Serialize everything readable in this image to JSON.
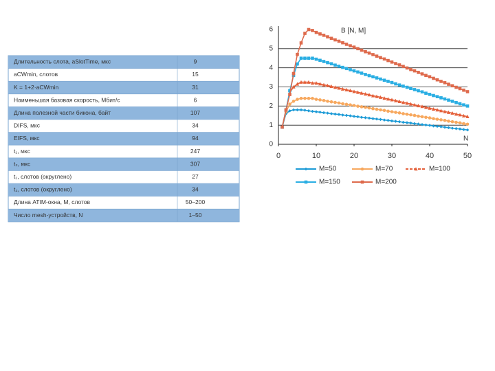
{
  "table": {
    "rows": [
      [
        "Длительность слота, aSlotTime, мкс",
        "9"
      ],
      [
        "aCWmin, слотов",
        "15"
      ],
      [
        "K = 1+2·aCWmin",
        "31"
      ],
      [
        "Наименьшая базовая скорость, Мбит/с",
        "6"
      ],
      [
        "Длина полезной части бикона, байт",
        "107"
      ],
      [
        "DIFS, мкс",
        "34"
      ],
      [
        "EIFS, мкс",
        "94"
      ],
      [
        "t₁, мкс",
        "247"
      ],
      [
        "t₂, мкс",
        "307"
      ],
      [
        "t₁, слотов (округлено)",
        "27"
      ],
      [
        "t₂, слотов (округлено)",
        "34"
      ],
      [
        "Длина ATIM-окна, M, слотов",
        "50–200"
      ],
      [
        "Число mesh-устройств, N",
        "1–50"
      ]
    ]
  },
  "chart_data": {
    "type": "line",
    "y_label": "B [N, M]",
    "x_label": "N",
    "x": [
      1,
      2,
      3,
      4,
      5,
      6,
      7,
      8,
      9,
      10,
      11,
      12,
      13,
      14,
      15,
      16,
      17,
      18,
      19,
      20,
      21,
      22,
      23,
      24,
      25,
      26,
      27,
      28,
      29,
      30,
      31,
      32,
      33,
      34,
      35,
      36,
      37,
      38,
      39,
      40,
      41,
      42,
      43,
      44,
      45,
      46,
      47,
      48,
      49,
      50
    ],
    "xlim": [
      0,
      50
    ],
    "xticks": [
      0,
      10,
      20,
      30,
      40,
      50
    ],
    "ylim": [
      0,
      6
    ],
    "yticks": [
      0,
      1,
      2,
      3,
      4,
      5,
      6
    ],
    "grid": true,
    "series": [
      {
        "name": "M=50",
        "color": "#1b9ad6",
        "marker": "diamond",
        "values": [
          0.9,
          1.6,
          1.75,
          1.8,
          1.8,
          1.8,
          1.78,
          1.75,
          1.72,
          1.7,
          1.68,
          1.65,
          1.63,
          1.6,
          1.58,
          1.56,
          1.53,
          1.51,
          1.49,
          1.46,
          1.44,
          1.41,
          1.39,
          1.37,
          1.34,
          1.32,
          1.3,
          1.27,
          1.25,
          1.22,
          1.2,
          1.18,
          1.15,
          1.13,
          1.11,
          1.08,
          1.06,
          1.03,
          1.01,
          0.99,
          0.96,
          0.94,
          0.92,
          0.89,
          0.87,
          0.84,
          0.82,
          0.8,
          0.77,
          0.75
        ]
      },
      {
        "name": "M=70",
        "color": "#f7a85e",
        "marker": "circle",
        "values": [
          0.9,
          1.7,
          2.1,
          2.25,
          2.35,
          2.4,
          2.4,
          2.4,
          2.4,
          2.35,
          2.32,
          2.29,
          2.25,
          2.22,
          2.19,
          2.16,
          2.12,
          2.09,
          2.06,
          2.03,
          1.99,
          1.96,
          1.93,
          1.9,
          1.86,
          1.83,
          1.8,
          1.77,
          1.73,
          1.7,
          1.67,
          1.64,
          1.6,
          1.57,
          1.54,
          1.51,
          1.47,
          1.44,
          1.41,
          1.38,
          1.34,
          1.31,
          1.28,
          1.25,
          1.21,
          1.18,
          1.15,
          1.12,
          1.08,
          1.05
        ]
      },
      {
        "name": "M=100",
        "color": "#e4603a",
        "marker": "triangle",
        "values": [
          0.9,
          1.8,
          2.7,
          3.0,
          3.15,
          3.25,
          3.25,
          3.25,
          3.2,
          3.2,
          3.16,
          3.11,
          3.07,
          3.03,
          2.98,
          2.94,
          2.89,
          2.85,
          2.81,
          2.76,
          2.72,
          2.68,
          2.63,
          2.59,
          2.54,
          2.5,
          2.46,
          2.41,
          2.37,
          2.33,
          2.28,
          2.24,
          2.19,
          2.15,
          2.11,
          2.06,
          2.02,
          1.98,
          1.93,
          1.89,
          1.84,
          1.8,
          1.76,
          1.71,
          1.67,
          1.63,
          1.58,
          1.54,
          1.49,
          1.45
        ]
      },
      {
        "name": "M=150",
        "color": "#2aaee3",
        "marker": "square",
        "values": [
          0.9,
          1.8,
          2.8,
          3.6,
          4.2,
          4.5,
          4.5,
          4.5,
          4.5,
          4.45,
          4.39,
          4.33,
          4.27,
          4.21,
          4.14,
          4.08,
          4.02,
          3.96,
          3.9,
          3.84,
          3.78,
          3.72,
          3.65,
          3.59,
          3.53,
          3.47,
          3.41,
          3.35,
          3.29,
          3.23,
          3.16,
          3.1,
          3.04,
          2.98,
          2.92,
          2.86,
          2.8,
          2.74,
          2.67,
          2.61,
          2.55,
          2.49,
          2.43,
          2.37,
          2.31,
          2.25,
          2.18,
          2.12,
          2.06,
          2.0
        ]
      },
      {
        "name": "M=200",
        "color": "#de6a4c",
        "marker": "square",
        "values": [
          0.9,
          1.8,
          2.6,
          3.7,
          4.7,
          5.3,
          5.8,
          6.0,
          5.95,
          5.85,
          5.77,
          5.7,
          5.62,
          5.54,
          5.46,
          5.39,
          5.31,
          5.23,
          5.15,
          5.08,
          5.0,
          4.92,
          4.84,
          4.77,
          4.69,
          4.61,
          4.53,
          4.46,
          4.38,
          4.3,
          4.22,
          4.15,
          4.07,
          3.99,
          3.91,
          3.84,
          3.76,
          3.68,
          3.6,
          3.53,
          3.45,
          3.37,
          3.29,
          3.22,
          3.14,
          3.06,
          2.98,
          2.91,
          2.83,
          2.75
        ]
      }
    ]
  }
}
